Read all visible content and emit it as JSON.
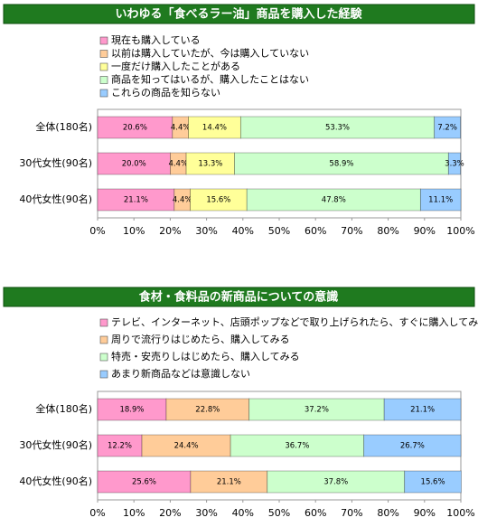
{
  "chart_data": [
    {
      "type": "stacked-bar-horizontal",
      "title": "いわゆる「食べるラー油」商品を購入した経験",
      "categories": [
        "全体(180名)",
        "30代女性(90名)",
        "40代女性(90名)"
      ],
      "series": [
        {
          "name": "現在も購入している",
          "color": "#ff99cc",
          "values": [
            20.6,
            20.0,
            21.1
          ],
          "value_labels": [
            "20.6%",
            "20.0%",
            "21.1%"
          ]
        },
        {
          "name": "以前は購入していたが、今は購入していない",
          "color": "#ffcc99",
          "values": [
            4.4,
            4.4,
            4.4
          ],
          "value_labels": [
            "4.4%",
            "4.4%",
            "4.4%"
          ]
        },
        {
          "name": "一度だけ購入したことがある",
          "color": "#ffff99",
          "values": [
            14.4,
            13.3,
            15.6
          ],
          "value_labels": [
            "14.4%",
            "13.3%",
            "15.6%"
          ]
        },
        {
          "name": "商品を知ってはいるが、購入したことはない",
          "color": "#ccffcc",
          "values": [
            53.3,
            58.9,
            47.8
          ],
          "value_labels": [
            "53.3%",
            "58.9%",
            "47.8%"
          ]
        },
        {
          "name": "これらの商品を知らない",
          "color": "#99ccff",
          "values": [
            7.2,
            3.3,
            11.1
          ],
          "value_labels": [
            "7.2%",
            "3.3%",
            "11.1%"
          ]
        }
      ],
      "xlim": [
        0,
        100
      ],
      "xticks": [
        {
          "value": 0,
          "label": "0%"
        },
        {
          "value": 10,
          "label": "10%"
        },
        {
          "value": 20,
          "label": "20%"
        },
        {
          "value": 30,
          "label": "30%"
        },
        {
          "value": 40,
          "label": "40%"
        },
        {
          "value": 50,
          "label": "50%"
        },
        {
          "value": 60,
          "label": "60%"
        },
        {
          "value": 70,
          "label": "70%"
        },
        {
          "value": 80,
          "label": "80%"
        },
        {
          "value": 90,
          "label": "90%"
        },
        {
          "value": 100,
          "label": "100%"
        }
      ]
    },
    {
      "type": "stacked-bar-horizontal",
      "title": "食材・食料品の新商品についての意識",
      "categories": [
        "全体(180名)",
        "30代女性(90名)",
        "40代女性(90名)"
      ],
      "series": [
        {
          "name": "テレビ、インターネット、店頭ポップなどで取り上げられたら、すぐに購入してみる",
          "color": "#ff99cc",
          "values": [
            18.9,
            12.2,
            25.6
          ],
          "value_labels": [
            "18.9%",
            "12.2%",
            "25.6%"
          ]
        },
        {
          "name": "周りで流行りはじめたら、購入してみる",
          "color": "#ffcc99",
          "values": [
            22.8,
            24.4,
            21.1
          ],
          "value_labels": [
            "22.8%",
            "24.4%",
            "21.1%"
          ]
        },
        {
          "name": "特売・安売りしはじめたら、購入してみる",
          "color": "#ccffcc",
          "values": [
            37.2,
            36.7,
            37.8
          ],
          "value_labels": [
            "37.2%",
            "36.7%",
            "37.8%"
          ]
        },
        {
          "name": "あまり新商品などは意識しない",
          "color": "#99ccff",
          "values": [
            21.1,
            26.7,
            15.6
          ],
          "value_labels": [
            "21.1%",
            "26.7%",
            "15.6%"
          ]
        }
      ],
      "xlim": [
        0,
        100
      ],
      "xticks": [
        {
          "value": 0,
          "label": "0%"
        },
        {
          "value": 10,
          "label": "10%"
        },
        {
          "value": 20,
          "label": "20%"
        },
        {
          "value": 30,
          "label": "30%"
        },
        {
          "value": 40,
          "label": "40%"
        },
        {
          "value": 50,
          "label": "50%"
        },
        {
          "value": 60,
          "label": "60%"
        },
        {
          "value": 70,
          "label": "70%"
        },
        {
          "value": 80,
          "label": "80%"
        },
        {
          "value": 90,
          "label": "90%"
        },
        {
          "value": 100,
          "label": "100%"
        }
      ]
    }
  ]
}
